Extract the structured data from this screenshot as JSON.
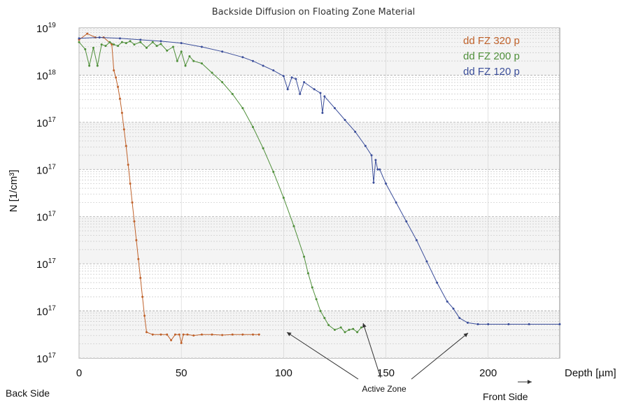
{
  "chart_data": {
    "type": "line",
    "title": "Backside Diffusion on Floating Zone Material",
    "xlabel": "Depth  [µm]",
    "ylabel": "N [1/cm³]",
    "xlim": [
      0,
      235
    ],
    "ylim": [
      0,
      7
    ],
    "x_ticks": [
      {
        "value": 0,
        "label": "0"
      },
      {
        "value": 50,
        "label": "50"
      },
      {
        "value": 100,
        "label": "100"
      },
      {
        "value": 150,
        "label": "150"
      },
      {
        "value": 200,
        "label": "200"
      }
    ],
    "y_ticks": [
      {
        "value": 7,
        "base": "10",
        "exp": "19"
      },
      {
        "value": 6,
        "base": "10",
        "exp": "18"
      },
      {
        "value": 5,
        "base": "10",
        "exp": "17"
      },
      {
        "value": 4,
        "base": "10",
        "exp": "17"
      },
      {
        "value": 3,
        "base": "10",
        "exp": "17"
      },
      {
        "value": 2,
        "base": "10",
        "exp": "17"
      },
      {
        "value": 1,
        "base": "10",
        "exp": "17"
      },
      {
        "value": 0,
        "base": "10",
        "exp": "17"
      }
    ],
    "grid": true,
    "legend_position": "top-right",
    "series": [
      {
        "name": "dd FZ 320 p",
        "color": "#c0622b",
        "x": [
          0,
          4,
          8,
          12,
          16,
          17,
          18,
          19,
          20,
          21,
          22,
          23,
          24,
          25,
          26,
          27,
          28,
          29,
          30,
          31,
          32,
          33,
          36,
          40,
          43,
          45,
          47,
          49,
          50,
          51,
          53,
          56,
          60,
          65,
          70,
          75,
          80,
          85,
          88
        ],
        "y": [
          6.75,
          6.88,
          6.8,
          6.8,
          6.65,
          6.1,
          5.95,
          5.75,
          5.5,
          5.2,
          4.85,
          4.5,
          4.1,
          3.7,
          3.3,
          2.9,
          2.5,
          2.1,
          1.7,
          1.3,
          0.9,
          0.55,
          0.5,
          0.5,
          0.5,
          0.38,
          0.5,
          0.5,
          0.32,
          0.5,
          0.5,
          0.48,
          0.5,
          0.5,
          0.49,
          0.5,
          0.5,
          0.5,
          0.5
        ]
      },
      {
        "name": "dd FZ 200 p",
        "color": "#4f8f3a",
        "x": [
          0,
          3,
          5,
          7,
          9,
          11,
          13,
          15,
          17,
          19,
          21,
          23,
          25,
          27,
          30,
          33,
          36,
          38,
          40,
          43,
          46,
          48,
          50,
          52,
          54,
          56,
          60,
          65,
          70,
          75,
          80,
          85,
          90,
          95,
          100,
          105,
          110,
          112,
          114,
          116,
          118,
          120,
          122,
          125,
          128,
          130,
          132,
          134,
          136,
          138
        ],
        "y": [
          6.7,
          6.55,
          6.2,
          6.58,
          6.2,
          6.65,
          6.62,
          6.7,
          6.65,
          6.62,
          6.7,
          6.68,
          6.72,
          6.65,
          6.7,
          6.58,
          6.7,
          6.62,
          6.66,
          6.52,
          6.6,
          6.3,
          6.5,
          6.2,
          6.4,
          6.3,
          6.25,
          6.05,
          5.85,
          5.6,
          5.3,
          4.9,
          4.45,
          3.95,
          3.4,
          2.8,
          2.15,
          1.8,
          1.5,
          1.25,
          1.0,
          0.85,
          0.7,
          0.6,
          0.65,
          0.55,
          0.6,
          0.62,
          0.55,
          0.65
        ]
      },
      {
        "name": "dd FZ 120 p",
        "color": "#3b4e9a",
        "x": [
          0,
          10,
          20,
          30,
          40,
          50,
          60,
          70,
          80,
          85,
          90,
          95,
          100,
          102,
          104,
          106,
          108,
          110,
          115,
          118,
          119,
          120,
          125,
          130,
          135,
          140,
          143,
          144,
          145,
          146,
          147,
          150,
          155,
          160,
          165,
          170,
          175,
          180,
          183,
          186,
          190,
          195,
          200,
          210,
          220,
          235
        ],
        "y": [
          6.78,
          6.8,
          6.78,
          6.75,
          6.72,
          6.68,
          6.6,
          6.5,
          6.38,
          6.3,
          6.2,
          6.1,
          5.98,
          5.7,
          5.95,
          5.92,
          5.6,
          5.85,
          5.7,
          5.62,
          5.2,
          5.55,
          5.3,
          5.05,
          4.8,
          4.5,
          4.3,
          3.72,
          4.2,
          4.0,
          4.0,
          3.7,
          3.3,
          2.9,
          2.5,
          2.05,
          1.6,
          1.2,
          1.05,
          0.85,
          0.75,
          0.72,
          0.72,
          0.72,
          0.72,
          0.72
        ]
      }
    ]
  },
  "annotations": {
    "back_side": "Back Side",
    "front_side": "Front Side",
    "active_zone": "Active Zone"
  }
}
